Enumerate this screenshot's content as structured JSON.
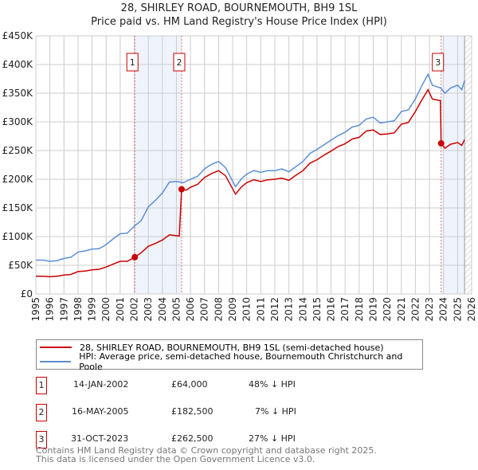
{
  "chart_data": {
    "type": "line",
    "title": "28, SHIRLEY ROAD, BOURNEMOUTH, BH9 1SL",
    "subtitle": "Price paid vs. HM Land Registry's House Price Index (HPI)",
    "xlim": [
      1995,
      2026
    ],
    "ylim": [
      0,
      450000
    ],
    "y_ticks": [
      {
        "v": 0,
        "label": "£0"
      },
      {
        "v": 50000,
        "label": "£50K"
      },
      {
        "v": 100000,
        "label": "£100K"
      },
      {
        "v": 150000,
        "label": "£150K"
      },
      {
        "v": 200000,
        "label": "£200K"
      },
      {
        "v": 250000,
        "label": "£250K"
      },
      {
        "v": 300000,
        "label": "£300K"
      },
      {
        "v": 350000,
        "label": "£350K"
      },
      {
        "v": 400000,
        "label": "£400K"
      },
      {
        "v": 450000,
        "label": "£450K"
      }
    ],
    "x_ticks": [
      "1995",
      "1996",
      "1997",
      "1998",
      "1999",
      "2000",
      "2001",
      "2002",
      "2003",
      "2004",
      "2005",
      "2006",
      "2007",
      "2008",
      "2009",
      "2010",
      "2011",
      "2012",
      "2013",
      "2014",
      "2015",
      "2016",
      "2017",
      "2018",
      "2019",
      "2020",
      "2021",
      "2022",
      "2023",
      "2024",
      "2025",
      "2026"
    ],
    "grid": true,
    "shaded": [
      [
        2002.04,
        2005.37
      ],
      [
        2023.83,
        2025.5
      ]
    ],
    "hatched_from": 2025.5,
    "colors": {
      "property": "#cc0000",
      "hpi": "#5b8fd4",
      "shade": "#eef3fc"
    },
    "series": [
      {
        "name": "28, SHIRLEY ROAD, BOURNEMOUTH, BH9 1SL (semi-detached house)",
        "points": [
          [
            1995,
            31
          ],
          [
            1995.5,
            31
          ],
          [
            1996,
            30
          ],
          [
            1996.5,
            31
          ],
          [
            1997,
            33
          ],
          [
            1997.5,
            34
          ],
          [
            1998,
            39
          ],
          [
            1998.5,
            40
          ],
          [
            1999,
            42
          ],
          [
            1999.5,
            43
          ],
          [
            2000,
            47
          ],
          [
            2000.5,
            52
          ],
          [
            2001,
            57
          ],
          [
            2001.5,
            57
          ],
          [
            2002.04,
            64
          ],
          [
            2002.5,
            72
          ],
          [
            2003,
            83
          ],
          [
            2003.5,
            88
          ],
          [
            2004,
            94
          ],
          [
            2004.5,
            103
          ],
          [
            2005.2,
            101
          ],
          [
            2005.37,
            182.5
          ],
          [
            2005.7,
            181
          ],
          [
            2006,
            186
          ],
          [
            2006.5,
            191
          ],
          [
            2007,
            203
          ],
          [
            2007.5,
            210
          ],
          [
            2008,
            215
          ],
          [
            2008.5,
            206
          ],
          [
            2009.2,
            174
          ],
          [
            2009.6,
            186
          ],
          [
            2010,
            194
          ],
          [
            2010.5,
            199
          ],
          [
            2011,
            196
          ],
          [
            2011.5,
            199
          ],
          [
            2012,
            200
          ],
          [
            2012.5,
            202
          ],
          [
            2013,
            198
          ],
          [
            2013.5,
            207
          ],
          [
            2014,
            215
          ],
          [
            2014.5,
            228
          ],
          [
            2015,
            234
          ],
          [
            2015.5,
            242
          ],
          [
            2016,
            249
          ],
          [
            2016.5,
            257
          ],
          [
            2017,
            262
          ],
          [
            2017.5,
            270
          ],
          [
            2018,
            273
          ],
          [
            2018.5,
            284
          ],
          [
            2019,
            286
          ],
          [
            2019.5,
            278
          ],
          [
            2020,
            279
          ],
          [
            2020.5,
            281
          ],
          [
            2021,
            296
          ],
          [
            2021.5,
            299
          ],
          [
            2022,
            318
          ],
          [
            2022.5,
            340
          ],
          [
            2022.9,
            356
          ],
          [
            2023.2,
            340
          ],
          [
            2023.78,
            337
          ],
          [
            2023.83,
            262.5
          ],
          [
            2024.1,
            254
          ],
          [
            2024.5,
            261
          ],
          [
            2025,
            264
          ],
          [
            2025.3,
            259
          ],
          [
            2025.5,
            269
          ]
        ]
      },
      {
        "name": "HPI: Average price, semi-detached house, Bournemouth Christchurch and Poole",
        "points": [
          [
            1995,
            59
          ],
          [
            1995.5,
            59
          ],
          [
            1996,
            57
          ],
          [
            1996.5,
            58
          ],
          [
            1997,
            62
          ],
          [
            1997.5,
            64
          ],
          [
            1998,
            73
          ],
          [
            1998.5,
            75
          ],
          [
            1999,
            78
          ],
          [
            1999.5,
            79
          ],
          [
            2000,
            86
          ],
          [
            2000.5,
            96
          ],
          [
            2001,
            105
          ],
          [
            2001.5,
            106
          ],
          [
            2002,
            118
          ],
          [
            2002.5,
            128
          ],
          [
            2003,
            152
          ],
          [
            2003.5,
            163
          ],
          [
            2004,
            176
          ],
          [
            2004.5,
            195
          ],
          [
            2005,
            196
          ],
          [
            2005.5,
            194
          ],
          [
            2006,
            200
          ],
          [
            2006.5,
            205
          ],
          [
            2007,
            218
          ],
          [
            2007.5,
            226
          ],
          [
            2008,
            231
          ],
          [
            2008.5,
            220
          ],
          [
            2009.2,
            187
          ],
          [
            2009.6,
            200
          ],
          [
            2010,
            209
          ],
          [
            2010.5,
            215
          ],
          [
            2011,
            212
          ],
          [
            2011.5,
            215
          ],
          [
            2012,
            215
          ],
          [
            2012.5,
            218
          ],
          [
            2013,
            213
          ],
          [
            2013.5,
            222
          ],
          [
            2014,
            231
          ],
          [
            2014.5,
            245
          ],
          [
            2015,
            252
          ],
          [
            2015.5,
            260
          ],
          [
            2016,
            268
          ],
          [
            2016.5,
            276
          ],
          [
            2017,
            282
          ],
          [
            2017.5,
            291
          ],
          [
            2018,
            294
          ],
          [
            2018.5,
            305
          ],
          [
            2019,
            308
          ],
          [
            2019.5,
            298
          ],
          [
            2020,
            300
          ],
          [
            2020.5,
            302
          ],
          [
            2021,
            318
          ],
          [
            2021.5,
            321
          ],
          [
            2022,
            340
          ],
          [
            2022.5,
            365
          ],
          [
            2022.9,
            383
          ],
          [
            2023.2,
            364
          ],
          [
            2023.8,
            359
          ],
          [
            2024.1,
            350
          ],
          [
            2024.5,
            359
          ],
          [
            2025,
            364
          ],
          [
            2025.3,
            356
          ],
          [
            2025.5,
            372
          ]
        ]
      }
    ],
    "sales": [
      {
        "n": "1",
        "date": "14-JAN-2002",
        "x": 2002.04,
        "price": "£64,000",
        "value": 64,
        "delta": "48% ↓ HPI"
      },
      {
        "n": "2",
        "date": "16-MAY-2005",
        "x": 2005.37,
        "price": "£182,500",
        "value": 182.5,
        "delta": "7% ↓ HPI"
      },
      {
        "n": "3",
        "date": "31-OCT-2023",
        "x": 2023.83,
        "price": "£262,500",
        "value": 262.5,
        "delta": "27% ↓ HPI"
      }
    ],
    "value_units": "£ thousands"
  },
  "footer": {
    "line1": "Contains HM Land Registry data © Crown copyright and database right 2025.",
    "line2": "This data is licensed under the Open Government Licence v3.0."
  }
}
